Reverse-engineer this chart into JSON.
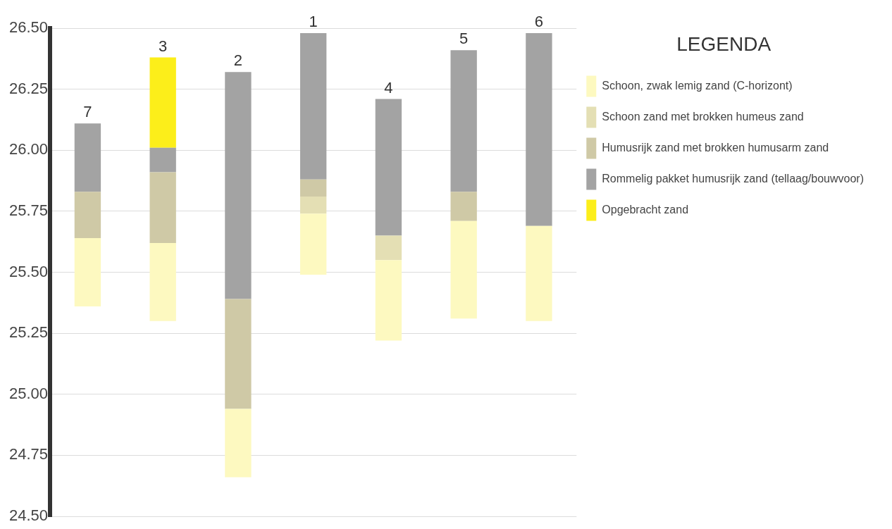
{
  "chart_data": {
    "type": "bar",
    "categories": [
      "7",
      "3",
      "2",
      "1",
      "4",
      "5",
      "6"
    ],
    "series": [
      {
        "name": "Schoon, zwak lemig zand (C-horizont)",
        "color": "#fdf9c0",
        "base": [
          25.36,
          25.3,
          24.66,
          25.49,
          25.22,
          25.31,
          25.3
        ],
        "values": [
          0.28,
          0.32,
          0.28,
          0.25,
          0.33,
          0.4,
          0.39
        ]
      },
      {
        "name": "Schoon zand met brokken humeus zand",
        "color": "#e4dfb4",
        "base": [
          null,
          null,
          null,
          25.74,
          25.55,
          null,
          null
        ],
        "values": [
          null,
          null,
          null,
          0.07,
          0.1,
          null,
          null
        ]
      },
      {
        "name": "Humusrijk zand met brokken humusarm zand",
        "color": "#cfc9a6",
        "base": [
          25.64,
          25.62,
          24.94,
          25.81,
          null,
          25.71,
          null
        ],
        "values": [
          0.19,
          0.29,
          0.45,
          0.07,
          null,
          0.12,
          null
        ]
      },
      {
        "name": "Rommelig pakket humusrijk zand (tellaag/bouwvoor)",
        "color": "#a3a3a3",
        "base": [
          25.83,
          25.91,
          25.39,
          25.88,
          25.65,
          25.83,
          25.69
        ],
        "values": [
          0.28,
          0.1,
          0.93,
          0.6,
          0.56,
          0.58,
          0.79
        ]
      },
      {
        "name": "Opgebracht zand",
        "color": "#fcee1a",
        "base": [
          null,
          26.01,
          null,
          null,
          null,
          null,
          null
        ],
        "values": [
          null,
          0.37,
          null,
          null,
          null,
          null,
          null
        ]
      }
    ],
    "legend_title": "LEGENDA",
    "legend": "top right",
    "ylim": [
      24.5,
      26.5
    ],
    "yticks": [
      {
        "value": 24.5,
        "label": "24.50"
      },
      {
        "value": 24.75,
        "label": "24.75"
      },
      {
        "value": 25,
        "label": "25.00"
      },
      {
        "value": 25.25,
        "label": "25.25"
      },
      {
        "value": 25.5,
        "label": "25.50"
      },
      {
        "value": 25.75,
        "label": "25.75"
      },
      {
        "value": 26,
        "label": "26.00"
      },
      {
        "value": 26.25,
        "label": "26.25"
      },
      {
        "value": 26.5,
        "label": "26.50"
      }
    ],
    "grid": "y",
    "tick_labels": "y"
  }
}
